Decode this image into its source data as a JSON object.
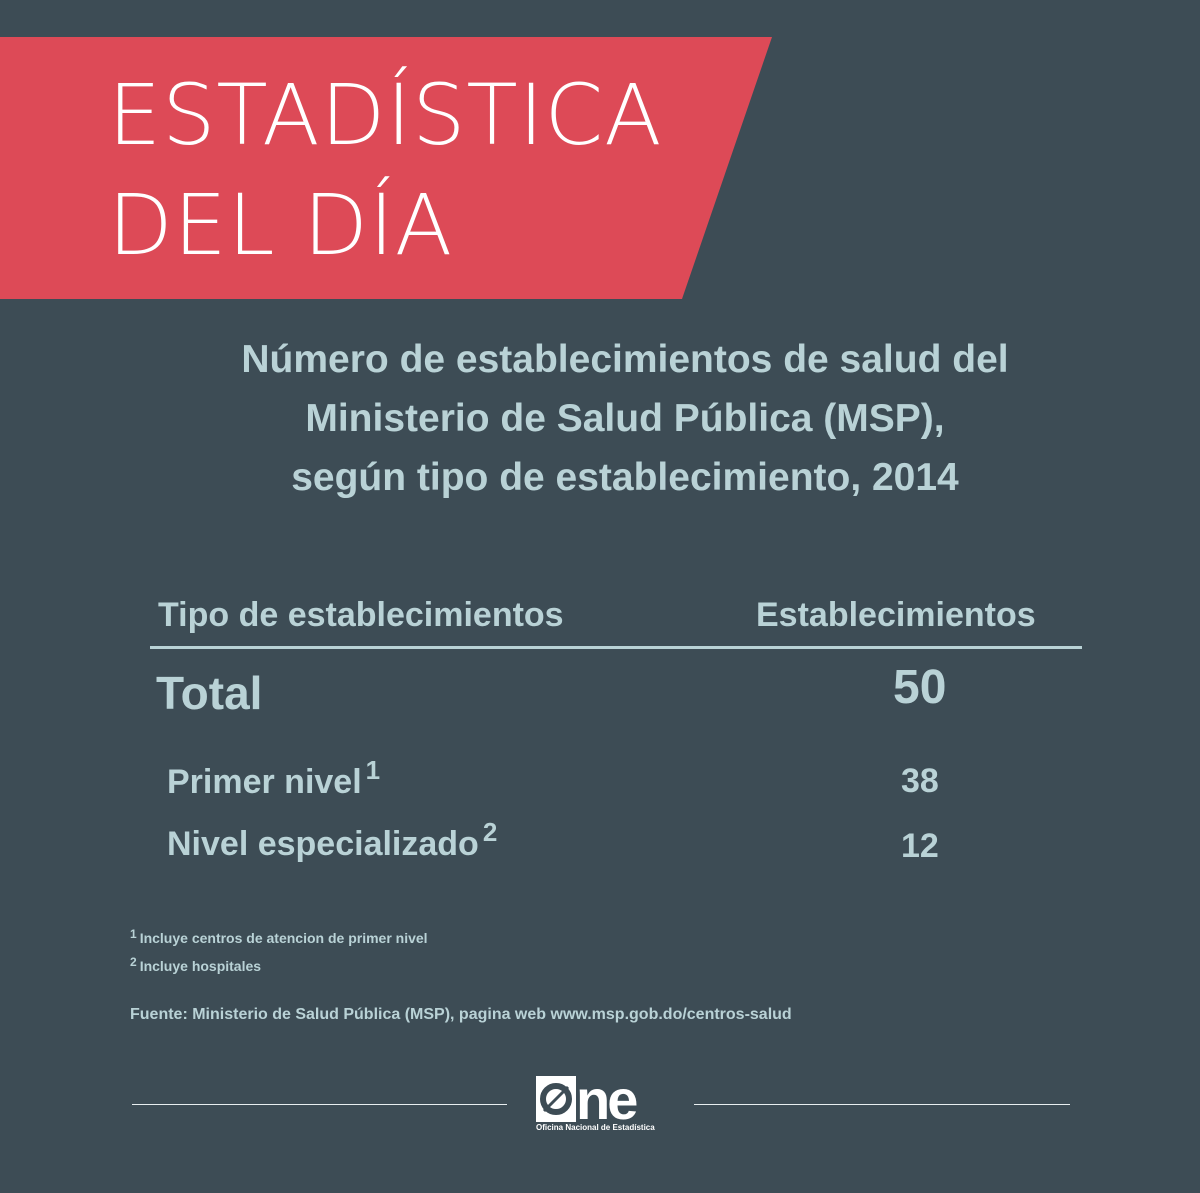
{
  "banner": {
    "line1": "ESTADÍSTICA",
    "line2": "DEL DÍA",
    "color": "#dd4a57"
  },
  "subtitle": {
    "line1": "Número de establecimientos de salud del",
    "line2": "Ministerio de Salud Pública (MSP),",
    "line3": "según tipo de establecimiento, 2014"
  },
  "table": {
    "header_type": "Tipo de establecimientos",
    "header_count": "Establecimientos",
    "total_label": "Total",
    "total_value": "50",
    "rows": [
      {
        "label": "Primer nivel",
        "note": "1",
        "value": "38"
      },
      {
        "label": "Nivel especializado",
        "note": "2",
        "value": "12"
      }
    ]
  },
  "notes": [
    {
      "mark": "1",
      "text": "Incluye centros de atencion de primer nivel"
    },
    {
      "mark": "2",
      "text": "Incluye hospitales"
    }
  ],
  "source": "Fuente: Ministerio de Salud Pública (MSP), pagina web www.msp.gob.do/centros-salud",
  "logo": {
    "word": "ne",
    "tagline": "Oficina Nacional de Estadística",
    "icon": "one-logo-o-icon"
  },
  "colors": {
    "background": "#3d4c55",
    "text": "#b9d2d6",
    "banner": "#dd4a57"
  }
}
